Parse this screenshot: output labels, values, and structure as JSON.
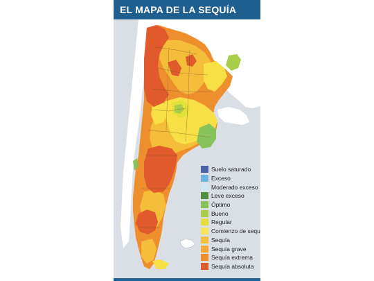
{
  "header": {
    "title": "EL MAPA DE LA SEQUÍA"
  },
  "colors": {
    "header_bg": "#1f5f8f",
    "land_neighbor": "#ffffff",
    "sea": "#d9dfe5",
    "dry_absolute": "#e05a2b",
    "dry_extreme": "#ee8f2d",
    "drought": "#f4bd3a",
    "drought_start": "#f7df45",
    "regular": "#e3e03a",
    "good": "#a9cd4a",
    "optimum": "#88c25a"
  },
  "legend": {
    "items": [
      {
        "label": "Suelo saturado",
        "color": "#4a63a6"
      },
      {
        "label": "Exceso",
        "color": "#6fb3e0"
      },
      {
        "label": "Moderado exceso",
        "color": "#cfe6f0"
      },
      {
        "label": "Leve exceso",
        "color": "#4f8f3f"
      },
      {
        "label": "Óptimo",
        "color": "#88c25a"
      },
      {
        "label": "Bueno",
        "color": "#a9cd4a"
      },
      {
        "label": "Regular",
        "color": "#e3e03a"
      },
      {
        "label": "Comienzo de sequía",
        "color": "#f7e65a"
      },
      {
        "label": "Sequía",
        "color": "#f4c13c"
      },
      {
        "label": "Sequía grave",
        "color": "#f3a93a"
      },
      {
        "label": "Sequía extrema",
        "color": "#ee8f2d"
      },
      {
        "label": "Sequía absoluta",
        "color": "#e05a2b"
      }
    ]
  }
}
